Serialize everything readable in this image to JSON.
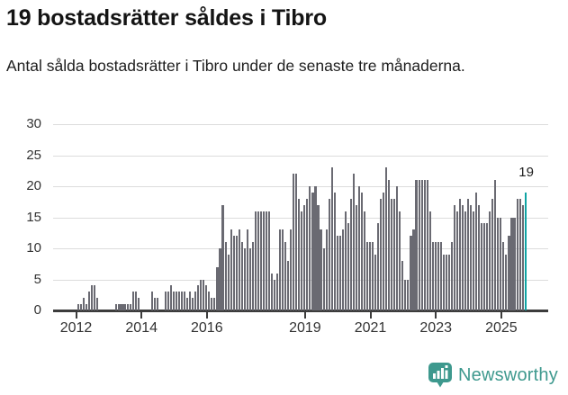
{
  "header": {
    "title": "19 bostadsrätter såldes i Tibro",
    "subtitle": "Antal sålda bostadsrätter i Tibro under de senaste tre månaderna."
  },
  "chart_data": {
    "type": "bar",
    "title": "19 bostadsrätter såldes i Tibro",
    "subtitle": "Antal sålda bostadsrätter i Tibro under de senaste tre månaderna.",
    "xlabel": "",
    "ylabel": "",
    "ylim": [
      0,
      30
    ],
    "y_ticks": [
      0,
      5,
      10,
      15,
      20,
      25,
      30
    ],
    "x_tick_years": [
      2012,
      2014,
      2016,
      2019,
      2021,
      2023,
      2025
    ],
    "grid": true,
    "legend_position": "none",
    "start_month": "2012-01",
    "end_month": "2025-09",
    "values": [
      1,
      1,
      2,
      1,
      3,
      4,
      4,
      2,
      0,
      0,
      0,
      0,
      0,
      0,
      1,
      1,
      1,
      1,
      1,
      1,
      3,
      3,
      2,
      0,
      0,
      0,
      0,
      3,
      2,
      2,
      0,
      0,
      3,
      3,
      4,
      3,
      3,
      3,
      3,
      3,
      2,
      3,
      2,
      3,
      4,
      5,
      5,
      4,
      3,
      2,
      2,
      7,
      10,
      17,
      11,
      9,
      13,
      12,
      12,
      13,
      11,
      10,
      13,
      10,
      11,
      16,
      16,
      16,
      16,
      16,
      16,
      6,
      5,
      6,
      13,
      13,
      11,
      8,
      13,
      22,
      22,
      18,
      16,
      17,
      18,
      20,
      19,
      20,
      17,
      13,
      10,
      13,
      18,
      23,
      19,
      12,
      12,
      13,
      16,
      14,
      18,
      22,
      17,
      20,
      19,
      16,
      11,
      11,
      11,
      9,
      14,
      18,
      19,
      23,
      21,
      18,
      18,
      20,
      16,
      8,
      5,
      5,
      12,
      13,
      21,
      21,
      21,
      21,
      21,
      16,
      11,
      11,
      11,
      11,
      9,
      9,
      9,
      11,
      17,
      16,
      18,
      17,
      16,
      18,
      17,
      16,
      19,
      17,
      14,
      14,
      14,
      16,
      18,
      21,
      15,
      15,
      11,
      9,
      12,
      15,
      15,
      18,
      18,
      17,
      19
    ],
    "highlight_last_value": 19,
    "annotation": {
      "text": "19"
    },
    "colors": {
      "bar": "#6a6a72",
      "highlight": "#0fa3a3",
      "grid": "#dcdcdc",
      "axis": "#3c3c3c"
    }
  },
  "footer": {
    "brand": "Newsworthy",
    "brand_color": "#3e998e"
  }
}
